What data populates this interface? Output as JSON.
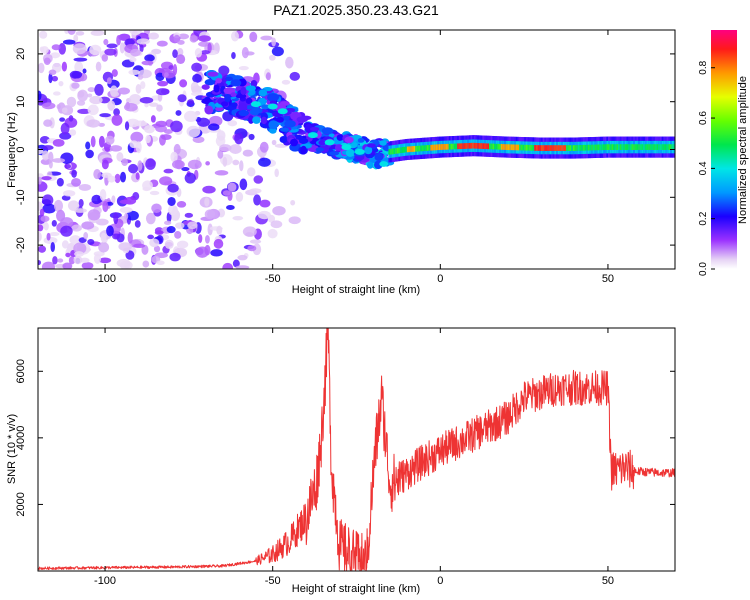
{
  "title": "PAZ1.2025.350.23.43.G21",
  "chart_data": [
    {
      "type": "heatmap",
      "name": "spectrogram",
      "xlabel": "Height of straight line (km)",
      "ylabel": "Frequency (Hz)",
      "xlim": [
        -120,
        70
      ],
      "ylim": [
        -25,
        25
      ],
      "xticks": [
        -100,
        -50,
        0,
        50
      ],
      "yticks": [
        -20,
        -10,
        0,
        10,
        20
      ],
      "signal_ridge": [
        {
          "x": -68,
          "y": 12
        },
        {
          "x": -60,
          "y": 11
        },
        {
          "x": -52,
          "y": 9
        },
        {
          "x": -45,
          "y": 5
        },
        {
          "x": -40,
          "y": 3
        },
        {
          "x": -35,
          "y": 2
        },
        {
          "x": -30,
          "y": 1
        },
        {
          "x": -25,
          "y": 0
        },
        {
          "x": -20,
          "y": -1
        },
        {
          "x": -15,
          "y": -0.5
        },
        {
          "x": -10,
          "y": 0
        },
        {
          "x": 0,
          "y": 0.5
        },
        {
          "x": 10,
          "y": 0.8
        },
        {
          "x": 20,
          "y": 0.5
        },
        {
          "x": 30,
          "y": 0.3
        },
        {
          "x": 40,
          "y": 0.3
        },
        {
          "x": 50,
          "y": 0.5
        },
        {
          "x": 60,
          "y": 0.5
        },
        {
          "x": 70,
          "y": 0.5
        }
      ],
      "colorbar": {
        "label": "Normalized spectral amplitude",
        "range": [
          0,
          0.95
        ],
        "ticks": [
          "0.0",
          "0.2",
          "0.4",
          "0.6",
          "0.8"
        ]
      }
    },
    {
      "type": "line",
      "name": "snr",
      "xlabel": "Height of straight line (km)",
      "ylabel": "SNR (10 * v/v)",
      "xlim": [
        -120,
        70
      ],
      "ylim": [
        0,
        7300
      ],
      "xticks": [
        -100,
        -50,
        0,
        50
      ],
      "yticks": [
        2000,
        4000,
        6000
      ],
      "series": [
        {
          "name": "SNR",
          "color": "#ee3333",
          "points": [
            {
              "x": -120,
              "y": 80
            },
            {
              "x": -100,
              "y": 100
            },
            {
              "x": -80,
              "y": 120
            },
            {
              "x": -65,
              "y": 150
            },
            {
              "x": -55,
              "y": 300
            },
            {
              "x": -50,
              "y": 500
            },
            {
              "x": -45,
              "y": 900
            },
            {
              "x": -40,
              "y": 1600
            },
            {
              "x": -37,
              "y": 2600
            },
            {
              "x": -35.5,
              "y": 4000
            },
            {
              "x": -34.5,
              "y": 5500
            },
            {
              "x": -33.5,
              "y": 7300
            },
            {
              "x": -32.5,
              "y": 3200
            },
            {
              "x": -30,
              "y": 700
            },
            {
              "x": -25,
              "y": 300
            },
            {
              "x": -22,
              "y": 200
            },
            {
              "x": -19.5,
              "y": 3500
            },
            {
              "x": -17.5,
              "y": 5200
            },
            {
              "x": -15,
              "y": 2600
            },
            {
              "x": -12,
              "y": 2800
            },
            {
              "x": -5,
              "y": 3300
            },
            {
              "x": 0,
              "y": 3600
            },
            {
              "x": 10,
              "y": 4100
            },
            {
              "x": 20,
              "y": 4600
            },
            {
              "x": 25,
              "y": 5200
            },
            {
              "x": 35,
              "y": 5500
            },
            {
              "x": 45,
              "y": 5500
            },
            {
              "x": 50,
              "y": 5500
            },
            {
              "x": 51,
              "y": 3000
            },
            {
              "x": 55,
              "y": 3100
            },
            {
              "x": 58,
              "y": 3000
            },
            {
              "x": 65,
              "y": 2950
            },
            {
              "x": 70,
              "y": 2950
            }
          ]
        }
      ]
    }
  ]
}
